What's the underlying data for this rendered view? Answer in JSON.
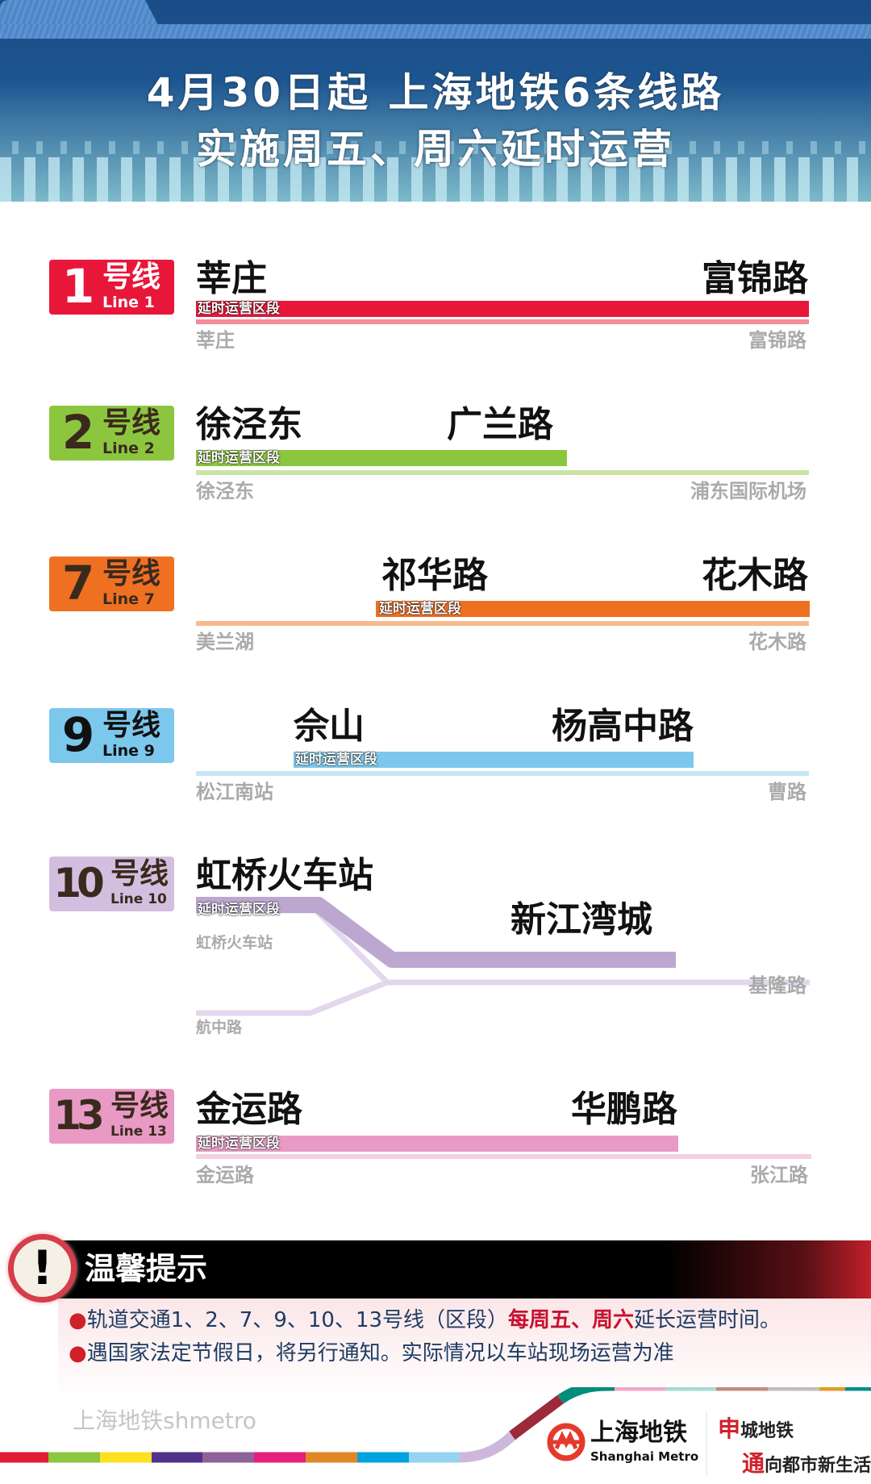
{
  "header": {
    "title_line1": "4月30日起  上海地铁6条线路",
    "title_line2": "实施周五、周六延时运营"
  },
  "section_tag": "延时运营区段",
  "lines": [
    {
      "num": "1",
      "suffix": "号线",
      "en": "Line 1",
      "color": "#e8173a",
      "light": "#f48a9a",
      "from": "莘庄",
      "to": "富锦路",
      "term_left": "莘庄",
      "term_right": "富锦路"
    },
    {
      "num": "2",
      "suffix": "号线",
      "en": "Line 2",
      "color": "#8cc63f",
      "light": "#c9e4a5",
      "from": "徐泾东",
      "to": "广兰路",
      "term_left": "徐泾东",
      "term_right": "浦东国际机场"
    },
    {
      "num": "7",
      "suffix": "号线",
      "en": "Line 7",
      "color": "#f07022",
      "light": "#f8b98f",
      "from": "祁华路",
      "to": "花木路",
      "term_left": "美兰湖",
      "term_right": "花木路"
    },
    {
      "num": "9",
      "suffix": "号线",
      "en": "Line 9",
      "color": "#7cc7ec",
      "light": "#c5e6f7",
      "from": "佘山",
      "to": "杨高中路",
      "term_left": "松江南站",
      "term_right": "曹路"
    },
    {
      "num": "10",
      "suffix": "号线",
      "en": "Line 10",
      "color": "#bca7d0",
      "light": "#e2d7ec",
      "from": "虹桥火车站",
      "to": "新江湾城",
      "term_left": "虹桥火车站",
      "term_branch": "航中路",
      "term_right": "基隆路"
    },
    {
      "num": "13",
      "suffix": "号线",
      "en": "Line 13",
      "color": "#e89ac4",
      "light": "#f3cfe2",
      "from": "金运路",
      "to": "华鹏路",
      "term_left": "金运路",
      "term_right": "张江路"
    }
  ],
  "notice": {
    "title": "温馨提示",
    "line1_a": "轨道交通1、2、7、9、10、13号线（区段）",
    "line1_hl": "每周五、周六",
    "line1_b": "延长运营时间。",
    "line2": "遇国家法定节假日，将另行通知。实际情况以车站现场运营为准"
  },
  "footer": {
    "logo_cn": "上海地铁",
    "logo_en": "Shanghai Metro",
    "slogan1_hl": "申",
    "slogan1": "城地铁",
    "slogan2_hl": "通",
    "slogan2": "向都市新生活",
    "watermark": "上海地铁shmetro"
  }
}
